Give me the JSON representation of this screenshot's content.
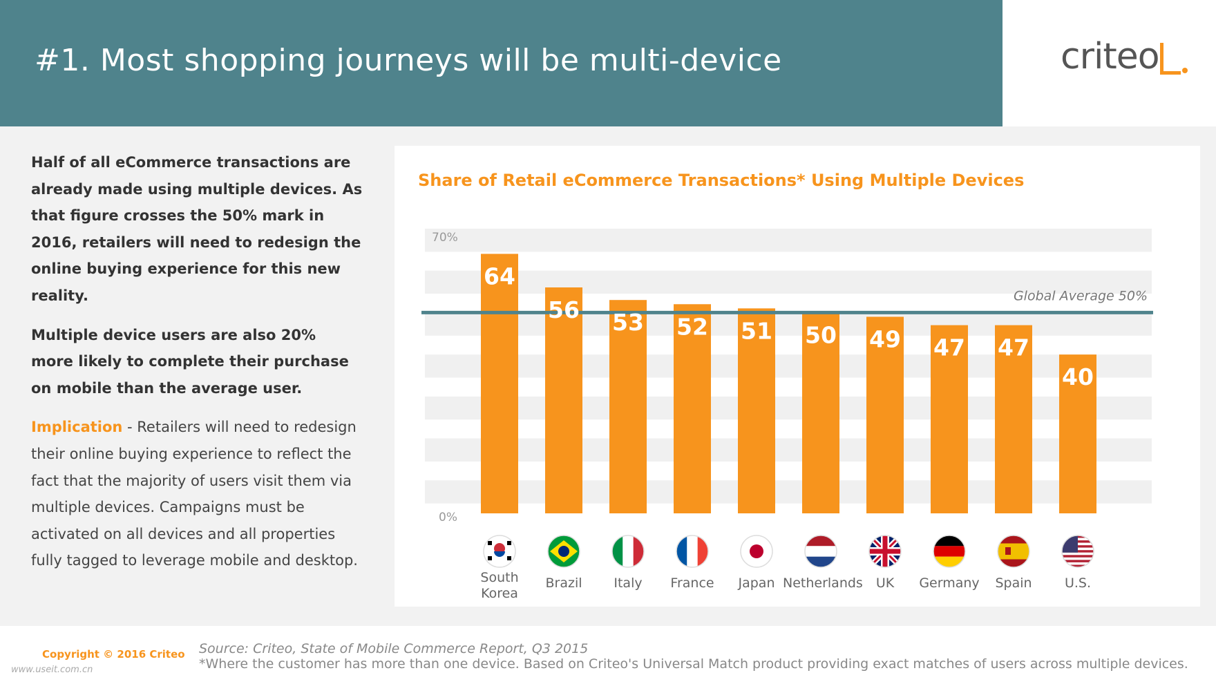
{
  "header": {
    "title": "#1. Most shopping journeys will be multi-device"
  },
  "logo": {
    "text": "criteo"
  },
  "left_text": {
    "para1": "Half of all eCommerce transactions are already made using multiple devices. As that figure crosses the 50% mark in 2016, retailers will need to redesign the online buying experience for this new reality.",
    "para2": "Multiple device users are also 20% more likely to complete their purchase on mobile than the average user.",
    "implication_label": "Implication",
    "implication_text": " - Retailers will need to redesign their online buying experience to reflect the fact that the majority of users visit them via multiple devices. Campaigns must be activated on all devices and all properties fully tagged to leverage mobile and desktop."
  },
  "colors": {
    "accent": "#f7941d",
    "header": "#4f838c",
    "average_line": "#4f838c"
  },
  "chart_data": {
    "type": "bar",
    "title": "Share of Retail eCommerce Transactions* Using Multiple Devices",
    "categories": [
      "South Korea",
      "Brazil",
      "Italy",
      "France",
      "Japan",
      "Netherlands",
      "UK",
      "Germany",
      "Spain",
      "U.S."
    ],
    "category_lines": [
      [
        "South",
        "Korea"
      ],
      [
        "Brazil"
      ],
      [
        "Italy"
      ],
      [
        "France"
      ],
      [
        "Japan"
      ],
      [
        "Netherlands"
      ],
      [
        "UK"
      ],
      [
        "Germany"
      ],
      [
        "Spain"
      ],
      [
        "U.S."
      ]
    ],
    "flags": [
      "south-korea-flag-icon",
      "brazil-flag-icon",
      "italy-flag-icon",
      "france-flag-icon",
      "japan-flag-icon",
      "netherlands-flag-icon",
      "uk-flag-icon",
      "germany-flag-icon",
      "spain-flag-icon",
      "us-flag-icon"
    ],
    "values": [
      64,
      56,
      53,
      52,
      51,
      50,
      49,
      47,
      47,
      40
    ],
    "value_labels": [
      "64",
      "56",
      "53",
      "52",
      "51",
      "50",
      "49",
      "47",
      "47",
      "40"
    ],
    "ylim": [
      0,
      70
    ],
    "ytick_labels": [
      "70%",
      "0%"
    ],
    "reference_line": {
      "value": 50,
      "label": "Global Average 50%"
    },
    "bar_color": "#f7941d",
    "grid": "striped"
  },
  "footer": {
    "copyright": "Copyright © 2016 Criteo",
    "source": "Source: Criteo, State of Mobile Commerce Report, Q3 2015",
    "footnote": "*Where the customer has more than one device. Based on Criteo's Universal Match product providing exact matches of users across multiple devices.",
    "watermark": "www.useit.com.cn"
  }
}
